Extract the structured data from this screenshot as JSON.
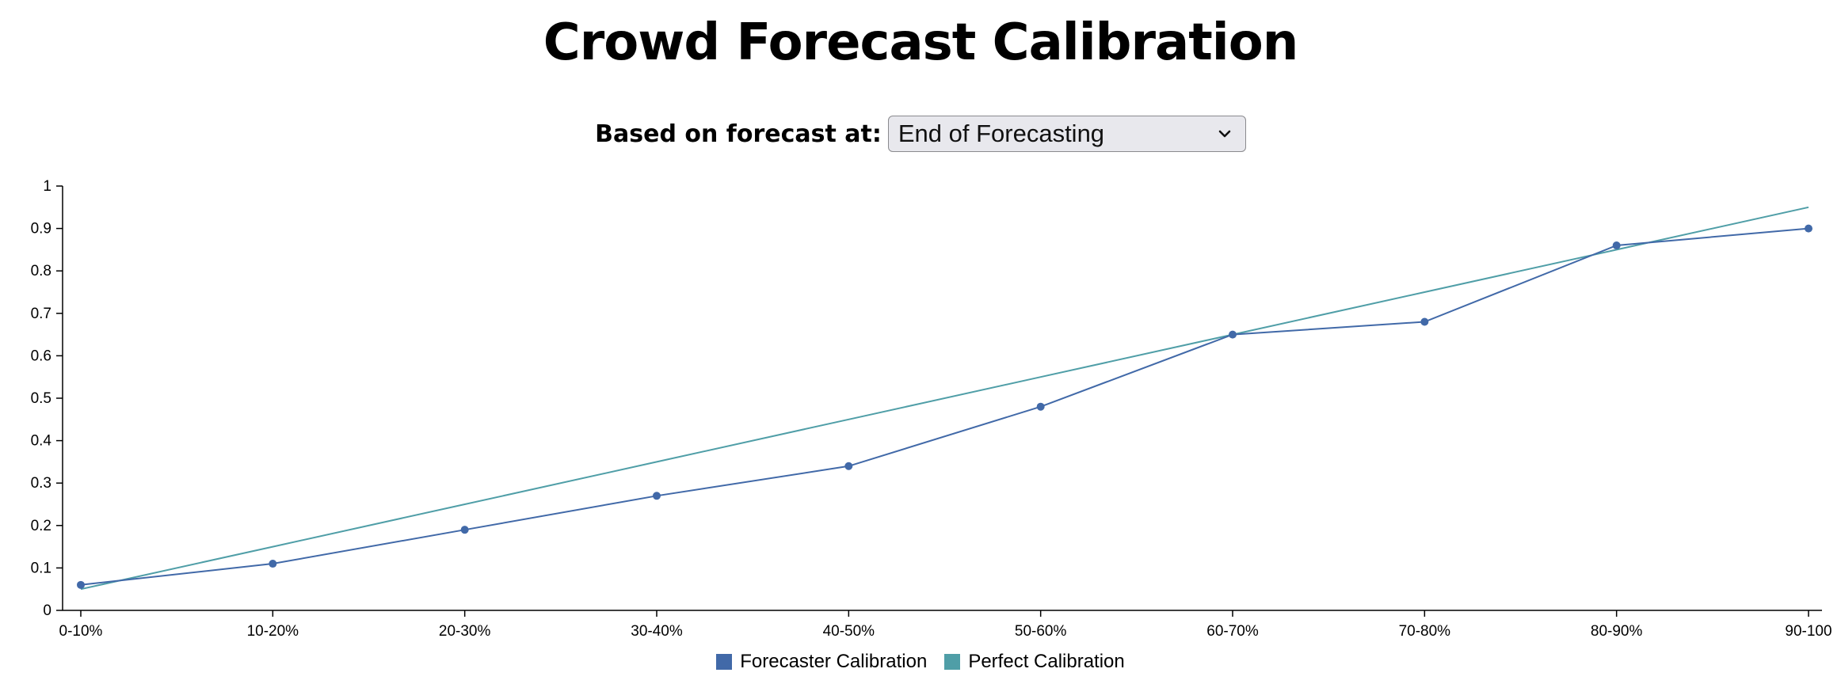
{
  "title": "Crowd Forecast Calibration",
  "control": {
    "label": "Based on forecast at:",
    "selected": "End of Forecasting"
  },
  "colors": {
    "forecaster": "#4169a8",
    "perfect": "#4f9ea7",
    "axis": "#000000"
  },
  "chart_data": {
    "type": "line",
    "categories": [
      "0-10%",
      "10-20%",
      "20-30%",
      "30-40%",
      "40-50%",
      "50-60%",
      "60-70%",
      "70-80%",
      "80-90%",
      "90-100"
    ],
    "ylim": [
      0,
      1
    ],
    "yticks": [
      "0",
      "0.1",
      "0.2",
      "0.3",
      "0.4",
      "0.5",
      "0.6",
      "0.7",
      "0.8",
      "0.9",
      "1"
    ],
    "series": [
      {
        "name": "Forecaster Calibration",
        "values": [
          0.06,
          0.11,
          0.19,
          0.27,
          0.34,
          0.48,
          0.65,
          0.68,
          0.86,
          0.9
        ],
        "markers": true
      },
      {
        "name": "Perfect Calibration",
        "values": [
          0.05,
          0.15,
          0.25,
          0.35,
          0.45,
          0.55,
          0.65,
          0.75,
          0.85,
          0.95
        ],
        "markers": false
      }
    ],
    "legend_position": "bottom-center",
    "grid": false
  }
}
